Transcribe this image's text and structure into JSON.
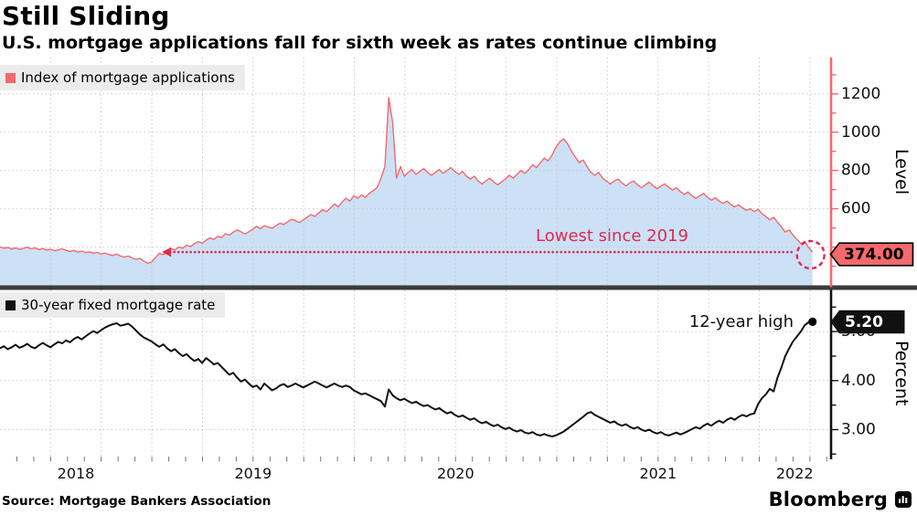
{
  "header": {
    "title": "Still Sliding",
    "subtitle": "U.S. mortgage applications fall for sixth week as rates continue climbing"
  },
  "source_line": "Source: Mortgage Bankers Association",
  "brand": {
    "name": "Bloomberg"
  },
  "colors": {
    "accent_red": "#F4696D",
    "fill_blue": "#CCE0F6",
    "annotation_red": "#DC2A50",
    "black": "#111111",
    "legend_bg": "#ececec",
    "divider": "#3a3a3a",
    "grid": "#c9c9c9"
  },
  "chart_data": {
    "type": "multi-panel",
    "x_domain": [
      2018.25,
      2022.35
    ],
    "x_years": [
      2018,
      2019,
      2020,
      2021,
      2022
    ],
    "x_start": 2018.25,
    "x_step": 0.0192,
    "panels": [
      {
        "type": "area",
        "legend": "Index of mortgage applications",
        "ylabel": "Level",
        "ylim": [
          200,
          1390
        ],
        "yticks": [
          400,
          600,
          800,
          1000,
          1200
        ],
        "minor_from": 300,
        "minor_to": 1300,
        "minor_step": 100,
        "labeled_ticks": [
          600,
          800,
          1000,
          1200
        ],
        "last_value_label": "374.00",
        "last_value": 374,
        "annotation": {
          "text": "Lowest since 2019",
          "level": 374,
          "from_x": 2019.05
        },
        "line_color": "#F4696D",
        "fill_color": "#CCE0F6",
        "values": [
          401,
          394,
          398,
          390,
          396,
          388,
          393,
          399,
          391,
          396,
          387,
          392,
          384,
          389,
          381,
          386,
          391,
          383,
          377,
          382,
          374,
          379,
          371,
          375,
          368,
          372,
          364,
          369,
          361,
          356,
          363,
          353,
          348,
          353,
          343,
          336,
          341,
          327,
          315,
          322,
          345,
          368,
          360,
          378,
          392,
          385,
          400,
          394,
          410,
          402,
          418,
          428,
          420,
          436,
          448,
          440,
          456,
          449,
          470,
          462,
          478,
          490,
          480,
          468,
          480,
          494,
          508,
          496,
          512,
          505,
          498,
          512,
          525,
          518,
          532,
          545,
          538,
          528,
          542,
          556,
          570,
          560,
          578,
          595,
          585,
          605,
          625,
          610,
          635,
          655,
          640,
          668,
          655,
          672,
          660,
          680,
          695,
          710,
          760,
          820,
          1180,
          1050,
          760,
          820,
          770,
          790,
          805,
          780,
          795,
          810,
          790,
          775,
          790,
          805,
          785,
          800,
          815,
          795,
          780,
          795,
          770,
          755,
          770,
          745,
          730,
          745,
          760,
          740,
          725,
          740,
          755,
          775,
          760,
          780,
          800,
          785,
          805,
          830,
          815,
          840,
          865,
          850,
          880,
          920,
          950,
          965,
          940,
          900,
          870,
          840,
          855,
          820,
          790,
          775,
          790,
          760,
          745,
          730,
          745,
          755,
          735,
          720,
          735,
          745,
          725,
          710,
          725,
          740,
          720,
          705,
          718,
          730,
          712,
          698,
          710,
          690,
          675,
          688,
          668,
          655,
          668,
          680,
          660,
          645,
          658,
          640,
          628,
          640,
          622,
          610,
          620,
          605,
          592,
          600,
          585,
          598,
          575,
          560,
          542,
          555,
          530,
          505,
          478,
          490,
          462,
          440,
          418,
          430,
          398,
          374
        ]
      },
      {
        "type": "line",
        "legend": "30-year fixed mortgage rate",
        "ylabel": "Percent",
        "ylim": [
          2.45,
          5.85
        ],
        "yticks": [
          "3.00",
          "4.00",
          "5.00"
        ],
        "ytick_values": [
          3,
          4,
          5
        ],
        "minor_ticks": [
          2.5,
          3.5,
          4.5,
          5.5
        ],
        "last_value_label": "5.20",
        "last_value": 5.2,
        "annotation": {
          "text": "12-year high"
        },
        "line_color": "#111111",
        "values": [
          4.66,
          4.7,
          4.64,
          4.68,
          4.73,
          4.67,
          4.7,
          4.75,
          4.69,
          4.66,
          4.72,
          4.77,
          4.72,
          4.68,
          4.74,
          4.79,
          4.76,
          4.82,
          4.78,
          4.85,
          4.89,
          4.84,
          4.9,
          4.96,
          5.01,
          4.97,
          5.03,
          5.08,
          5.12,
          5.15,
          5.17,
          5.12,
          5.14,
          5.16,
          5.1,
          5.02,
          4.94,
          4.88,
          4.84,
          4.8,
          4.74,
          4.69,
          4.74,
          4.66,
          4.6,
          4.64,
          4.56,
          4.5,
          4.54,
          4.46,
          4.4,
          4.44,
          4.36,
          4.46,
          4.4,
          4.33,
          4.36,
          4.28,
          4.2,
          4.12,
          4.16,
          4.06,
          3.98,
          4.02,
          3.94,
          3.87,
          3.9,
          3.82,
          3.94,
          3.87,
          3.8,
          3.84,
          3.9,
          3.93,
          3.87,
          3.9,
          3.94,
          3.9,
          3.86,
          3.9,
          3.94,
          3.98,
          3.94,
          3.9,
          3.86,
          3.9,
          3.94,
          3.9,
          3.87,
          3.9,
          3.87,
          3.8,
          3.76,
          3.72,
          3.74,
          3.7,
          3.66,
          3.62,
          3.58,
          3.47,
          3.82,
          3.7,
          3.64,
          3.6,
          3.63,
          3.58,
          3.54,
          3.57,
          3.52,
          3.48,
          3.5,
          3.45,
          3.41,
          3.44,
          3.38,
          3.33,
          3.36,
          3.3,
          3.26,
          3.29,
          3.24,
          3.2,
          3.23,
          3.17,
          3.13,
          3.16,
          3.11,
          3.07,
          3.1,
          3.05,
          3.01,
          3.04,
          2.99,
          2.96,
          2.99,
          2.94,
          2.92,
          2.95,
          2.9,
          2.88,
          2.91,
          2.88,
          2.86,
          2.88,
          2.92,
          2.96,
          3.02,
          3.08,
          3.14,
          3.2,
          3.26,
          3.33,
          3.36,
          3.3,
          3.26,
          3.22,
          3.18,
          3.14,
          3.17,
          3.11,
          3.08,
          3.11,
          3.06,
          3.02,
          3.05,
          3.0,
          2.97,
          3.0,
          2.95,
          2.92,
          2.95,
          2.9,
          2.88,
          2.91,
          2.94,
          2.9,
          2.93,
          2.97,
          3.01,
          3.05,
          3.02,
          3.08,
          3.12,
          3.08,
          3.14,
          3.18,
          3.14,
          3.2,
          3.24,
          3.2,
          3.26,
          3.3,
          3.27,
          3.31,
          3.33,
          3.52,
          3.64,
          3.72,
          3.83,
          3.78,
          4.06,
          4.27,
          4.5,
          4.66,
          4.8,
          4.9,
          5.0,
          5.13,
          5.19,
          5.2
        ]
      }
    ]
  }
}
